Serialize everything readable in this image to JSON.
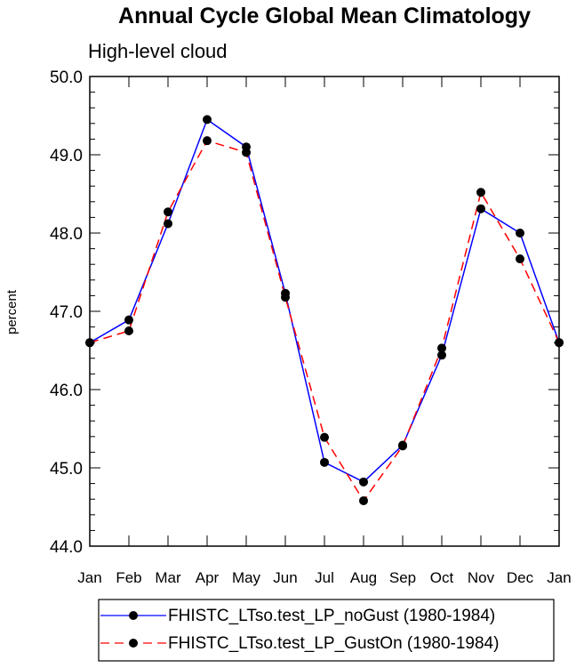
{
  "chart_data": {
    "type": "line",
    "title": "Annual Cycle Global Mean Climatology",
    "subtitle": "High-level cloud",
    "xlabel": "",
    "ylabel": "percent",
    "categories": [
      "Jan",
      "Feb",
      "Mar",
      "Apr",
      "May",
      "Jun",
      "Jul",
      "Aug",
      "Sep",
      "Oct",
      "Nov",
      "Dec",
      "Jan"
    ],
    "ylim": [
      44.0,
      50.0
    ],
    "yticks": [
      "44.0",
      "45.0",
      "46.0",
      "47.0",
      "48.0",
      "49.0",
      "50.0"
    ],
    "grid": false,
    "legend_position": "bottom",
    "series": [
      {
        "name": "FHISTC_LTso.test_LP_noGust (1980-1984)",
        "color": "#0000ff",
        "dash": "solid",
        "values": [
          46.6,
          46.89,
          48.12,
          49.45,
          49.1,
          47.23,
          45.07,
          44.82,
          45.29,
          46.44,
          48.31,
          48.0,
          46.6
        ]
      },
      {
        "name": "FHISTC_LTso.test_LP_GustOn (1980-1984)",
        "color": "#ff0000",
        "dash": "dashed",
        "values": [
          46.6,
          46.75,
          48.27,
          49.18,
          49.03,
          47.18,
          45.39,
          44.58,
          45.28,
          46.53,
          48.52,
          47.67,
          46.6
        ]
      }
    ]
  }
}
